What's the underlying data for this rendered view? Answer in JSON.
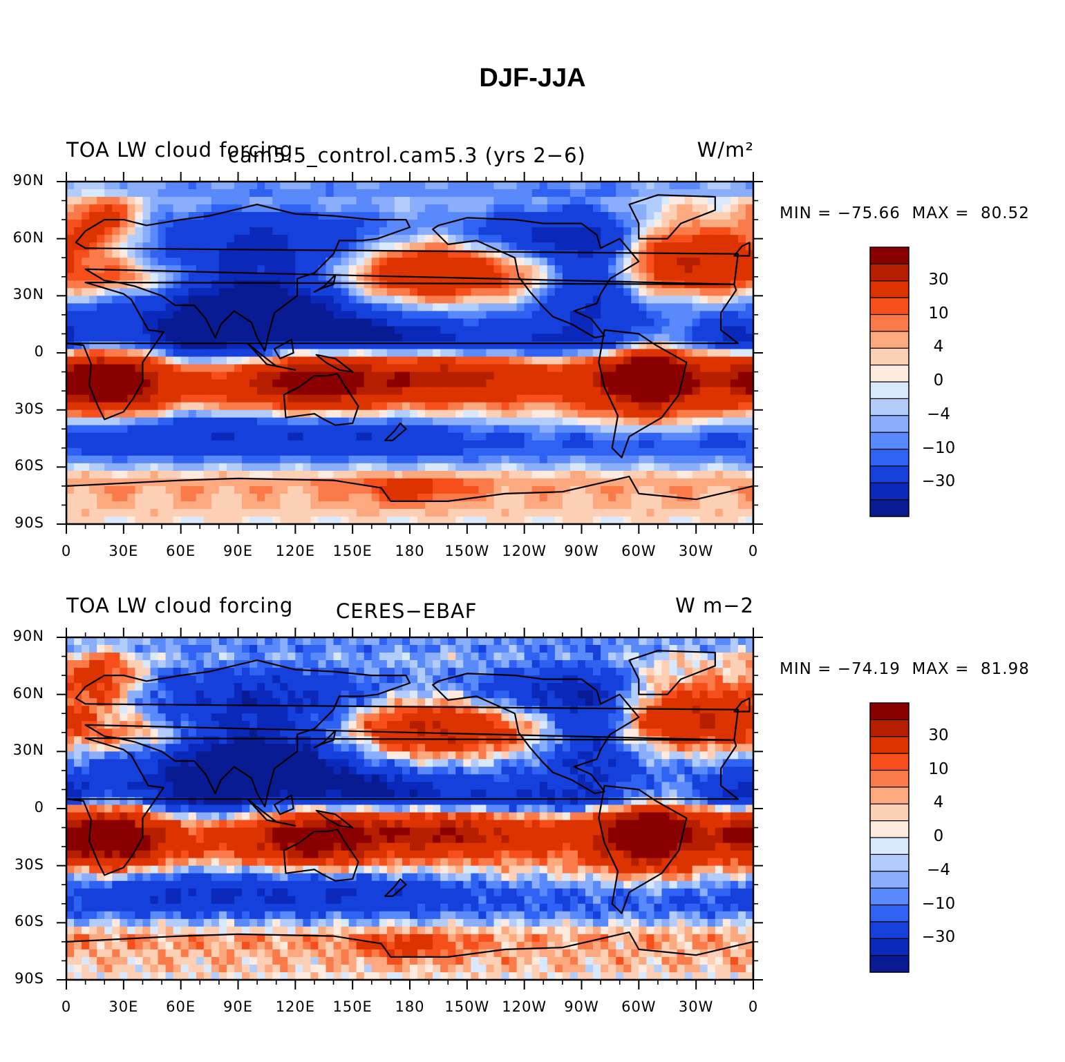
{
  "figure": {
    "title": "DJF-JJA"
  },
  "panels": [
    {
      "left_title": "TOA LW cloud forcing",
      "center_title": "cam5.5_control.cam5.3 (yrs 2−6)",
      "units": "W/m²",
      "min_label": "MIN = −75.66",
      "max_label": "MAX =  80.52"
    },
    {
      "left_title": "TOA LW cloud forcing",
      "center_title": "CERES−EBAF",
      "units": "W m−2",
      "min_label": "MIN = −74.19",
      "max_label": "MAX =  81.98"
    }
  ],
  "colorbar": {
    "tick_labels": [
      "30",
      "10",
      "4",
      "0",
      "−4",
      "−10",
      "−30"
    ],
    "colors": [
      "#8a0000",
      "#b61e00",
      "#dc3300",
      "#f74f1c",
      "#fb7a49",
      "#fca980",
      "#fdcfb5",
      "#feebe0",
      "#d8e9fd",
      "#b2cdfc",
      "#8aaefb",
      "#5989fb",
      "#2f62f3",
      "#1540dc",
      "#0a28b9",
      "#081b93"
    ]
  },
  "chart_data": [
    {
      "type": "heatmap",
      "title": "TOA LW cloud forcing — cam5.5_control.cam5.3 (yrs 2−6)",
      "units": "W/m²",
      "min": -75.66,
      "max": 80.52,
      "xlabel": "",
      "ylabel": "",
      "x_tick_labels": [
        "0",
        "30E",
        "60E",
        "90E",
        "120E",
        "150E",
        "180",
        "150W",
        "120W",
        "90W",
        "60W",
        "30W",
        "0"
      ],
      "y_tick_labels": [
        "90N",
        "60N",
        "30N",
        "0",
        "30S",
        "60S",
        "90S"
      ],
      "xlim": [
        0,
        360
      ],
      "ylim": [
        -90,
        90
      ],
      "contour_levels": [
        -50,
        -40,
        -30,
        -20,
        -15,
        -10,
        -6,
        -4,
        -2,
        0,
        2,
        4,
        6,
        10,
        15,
        20,
        30,
        40,
        50
      ]
    },
    {
      "type": "heatmap",
      "title": "TOA LW cloud forcing — CERES−EBAF",
      "units": "W m−2",
      "min": -74.19,
      "max": 81.98,
      "xlabel": "",
      "ylabel": "",
      "x_tick_labels": [
        "0",
        "30E",
        "60E",
        "90E",
        "120E",
        "150E",
        "180",
        "150W",
        "120W",
        "90W",
        "60W",
        "30W",
        "0"
      ],
      "y_tick_labels": [
        "90N",
        "60N",
        "30N",
        "0",
        "30S",
        "60S",
        "90S"
      ],
      "xlim": [
        0,
        360
      ],
      "ylim": [
        -90,
        90
      ],
      "contour_levels": [
        -50,
        -40,
        -30,
        -20,
        -15,
        -10,
        -6,
        -4,
        -2,
        0,
        2,
        4,
        6,
        10,
        15,
        20,
        30,
        40,
        50
      ]
    }
  ]
}
